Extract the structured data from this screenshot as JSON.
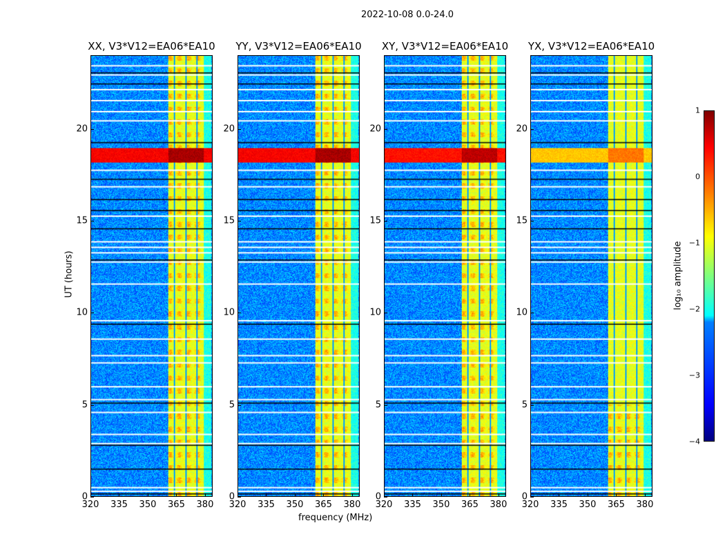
{
  "chart_data": {
    "type": "heatmap",
    "title": "2022-10-08 0.0-24.0",
    "xlabel": "frequency (MHz)",
    "ylabel": "UT (hours)",
    "xlim": [
      320,
      384
    ],
    "ylim": [
      0,
      24
    ],
    "xticks": [
      "320",
      "335",
      "350",
      "365",
      "380"
    ],
    "yticks": [
      "0",
      "5",
      "10",
      "15",
      "20"
    ],
    "panels": [
      {
        "title": "XX, V3*V12=EA06*EA10",
        "strong_band_level": 0.4
      },
      {
        "title": "YY, V3*V12=EA06*EA10",
        "strong_band_level": 0.4
      },
      {
        "title": "XY, V3*V12=EA06*EA10",
        "strong_band_level": 0.3
      },
      {
        "title": "YX, V3*V12=EA06*EA10",
        "strong_band_level": -0.6
      }
    ],
    "background_log10": -2.7,
    "rfi_band_mhz": [
      360.5,
      379.5
    ],
    "rfi_level_log10": -1.0,
    "rfi_gap_lines_mhz": [
      364,
      370,
      376
    ],
    "strong_rfi_hours": [
      18.2,
      19.0
    ],
    "flagged_hours": [
      0.3,
      0.5,
      2.9,
      3.4,
      4.6,
      5.3,
      6.0,
      7.3,
      7.7,
      8.6,
      9.6,
      11.6,
      12.8,
      13.3,
      13.6,
      13.9,
      15.3,
      16.9,
      17.8,
      20.5,
      21.0,
      21.6,
      22.2,
      23.0,
      23.5
    ],
    "dropout_hours": [
      0.15,
      1.5,
      2.8,
      5.1,
      9.4,
      12.9,
      14.6,
      15.6,
      16.2,
      17.3,
      19.3,
      22.5,
      23.1
    ],
    "colorbar": {
      "label": "log₁₀ amplitude",
      "ticks": [
        "1",
        "0",
        "−1",
        "−2",
        "−3",
        "−4"
      ],
      "range": [
        -4,
        1
      ],
      "colormap": "jet"
    }
  }
}
